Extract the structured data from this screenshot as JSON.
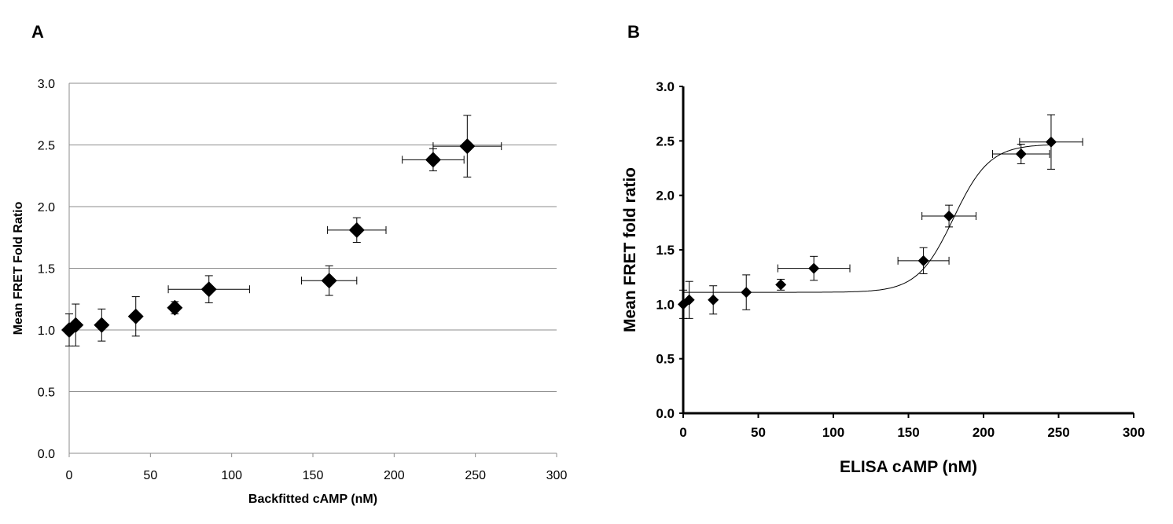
{
  "chart_data": [
    {
      "panel": "A",
      "type": "scatter",
      "xlabel": "Backfitted cAMP (nM)",
      "ylabel": "Mean FRET Fold Ratio",
      "xlim": [
        0,
        300
      ],
      "ylim": [
        0,
        3
      ],
      "x_ticks": [
        "0",
        "50",
        "100",
        "150",
        "200",
        "250",
        "300"
      ],
      "y_ticks": [
        "0.0",
        "0.5",
        "1.0",
        "1.5",
        "2.0",
        "2.5",
        "3.0"
      ],
      "grid": "horizontal",
      "marker": "diamond",
      "color": "#000000",
      "points": [
        {
          "x": 0,
          "y": 1.0,
          "xerr": 0,
          "yerr": 0.13
        },
        {
          "x": 4,
          "y": 1.04,
          "xerr": 0,
          "yerr": 0.17
        },
        {
          "x": 20,
          "y": 1.04,
          "xerr": 0,
          "yerr": 0.13
        },
        {
          "x": 41,
          "y": 1.11,
          "xerr": 0,
          "yerr": 0.16
        },
        {
          "x": 65,
          "y": 1.18,
          "xerr": 0,
          "yerr": 0.05
        },
        {
          "x": 86,
          "y": 1.33,
          "xerr": 25,
          "yerr": 0.11
        },
        {
          "x": 160,
          "y": 1.4,
          "xerr": 17,
          "yerr": 0.12
        },
        {
          "x": 177,
          "y": 1.81,
          "xerr": 18,
          "yerr": 0.1
        },
        {
          "x": 224,
          "y": 2.38,
          "xerr": 19,
          "yerr": 0.09
        },
        {
          "x": 245,
          "y": 2.49,
          "xerr": 21,
          "yerr": 0.25
        }
      ]
    },
    {
      "panel": "B",
      "type": "scatter",
      "xlabel": "ELISA cAMP (nM)",
      "ylabel": "Mean FRET fold ratio",
      "xlim": [
        0,
        300
      ],
      "ylim": [
        0,
        3
      ],
      "x_ticks": [
        "0",
        "50",
        "100",
        "150",
        "200",
        "250",
        "300"
      ],
      "y_ticks": [
        "0.0",
        "0.5",
        "1.0",
        "1.5",
        "2.0",
        "2.5",
        "3.0"
      ],
      "grid": "none",
      "marker": "diamond",
      "color": "#000000",
      "fit": {
        "type": "sigmoid",
        "bottom": 1.11,
        "top": 2.47,
        "x50": 180,
        "slope": 12
      },
      "points": [
        {
          "x": 0,
          "y": 1.0,
          "xerr": 0,
          "yerr": 0.13
        },
        {
          "x": 4,
          "y": 1.04,
          "xerr": 0,
          "yerr": 0.17
        },
        {
          "x": 20,
          "y": 1.04,
          "xerr": 0,
          "yerr": 0.13
        },
        {
          "x": 42,
          "y": 1.11,
          "xerr": 0,
          "yerr": 0.16
        },
        {
          "x": 65,
          "y": 1.18,
          "xerr": 0,
          "yerr": 0.05
        },
        {
          "x": 87,
          "y": 1.33,
          "xerr": 24,
          "yerr": 0.11
        },
        {
          "x": 160,
          "y": 1.4,
          "xerr": 17,
          "yerr": 0.12
        },
        {
          "x": 177,
          "y": 1.81,
          "xerr": 18,
          "yerr": 0.1
        },
        {
          "x": 225,
          "y": 2.38,
          "xerr": 19,
          "yerr": 0.09
        },
        {
          "x": 245,
          "y": 2.49,
          "xerr": 21,
          "yerr": 0.25
        }
      ]
    }
  ],
  "panels": {
    "a_label": "A",
    "b_label": "B"
  }
}
